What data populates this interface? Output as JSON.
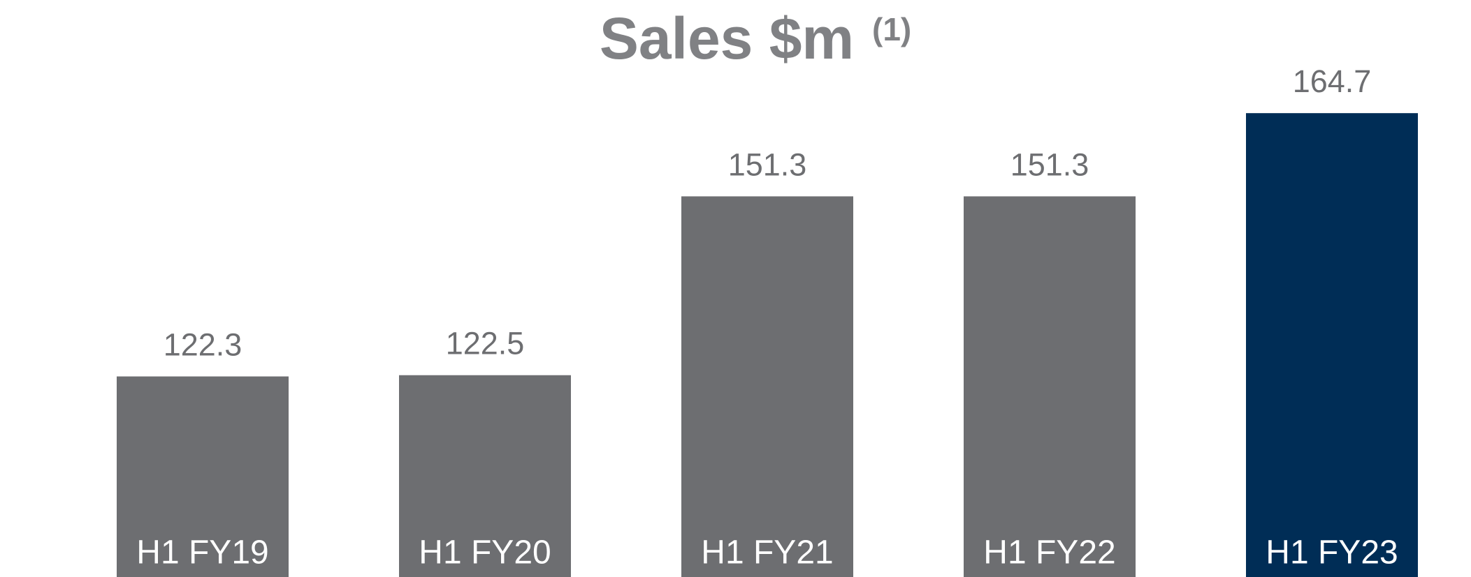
{
  "chart_data": {
    "type": "bar",
    "title": "Sales $m",
    "title_note": "(1)",
    "categories": [
      "H1 FY19",
      "H1 FY20",
      "H1 FY21",
      "H1 FY22",
      "H1 FY23"
    ],
    "values": [
      122.3,
      122.5,
      151.3,
      151.3,
      164.7
    ],
    "colors": [
      "#6d6e71",
      "#6d6e71",
      "#6d6e71",
      "#6d6e71",
      "#002d56"
    ],
    "ylim": [
      90,
      170
    ]
  }
}
